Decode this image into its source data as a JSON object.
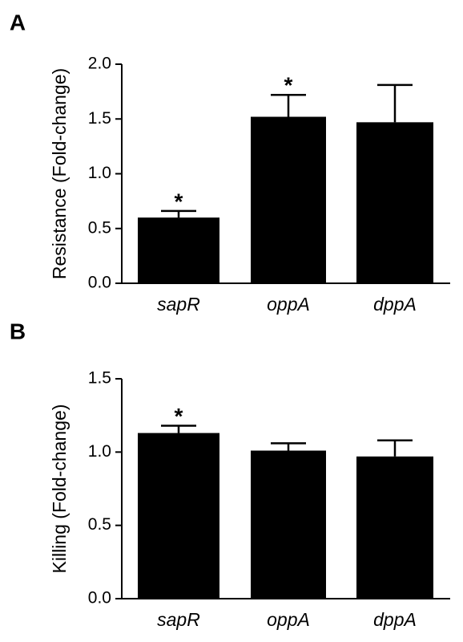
{
  "chart_data": [
    {
      "type": "bar",
      "panel": "A",
      "ylabel": "Resistance (Fold-change)",
      "categories": [
        "sapR",
        "oppA",
        "dppA"
      ],
      "values": [
        0.6,
        1.52,
        1.47
      ],
      "errors": [
        0.06,
        0.2,
        0.34
      ],
      "annotations": [
        "*",
        "*",
        null
      ],
      "color": "#000000",
      "ylim": [
        0,
        2.0
      ],
      "yticks": [
        {
          "value": 0,
          "label": "0.0"
        },
        {
          "value": 0.5,
          "label": "0.5"
        },
        {
          "value": 1,
          "label": "1.0"
        },
        {
          "value": 1.5,
          "label": "1.5"
        },
        {
          "value": 2,
          "label": "2.0"
        }
      ]
    },
    {
      "type": "bar",
      "panel": "B",
      "ylabel": "Killing (Fold-change)",
      "categories": [
        "sapR",
        "oppA",
        "dppA"
      ],
      "values": [
        1.13,
        1.01,
        0.97
      ],
      "errors": [
        0.05,
        0.05,
        0.11
      ],
      "annotations": [
        "*",
        null,
        null
      ],
      "color": "#000000",
      "ylim": [
        0,
        1.5
      ],
      "yticks": [
        {
          "value": 0,
          "label": "0.0"
        },
        {
          "value": 0.5,
          "label": "0.5"
        },
        {
          "value": 1,
          "label": "1.0"
        },
        {
          "value": 1.5,
          "label": "1.5"
        }
      ]
    }
  ]
}
